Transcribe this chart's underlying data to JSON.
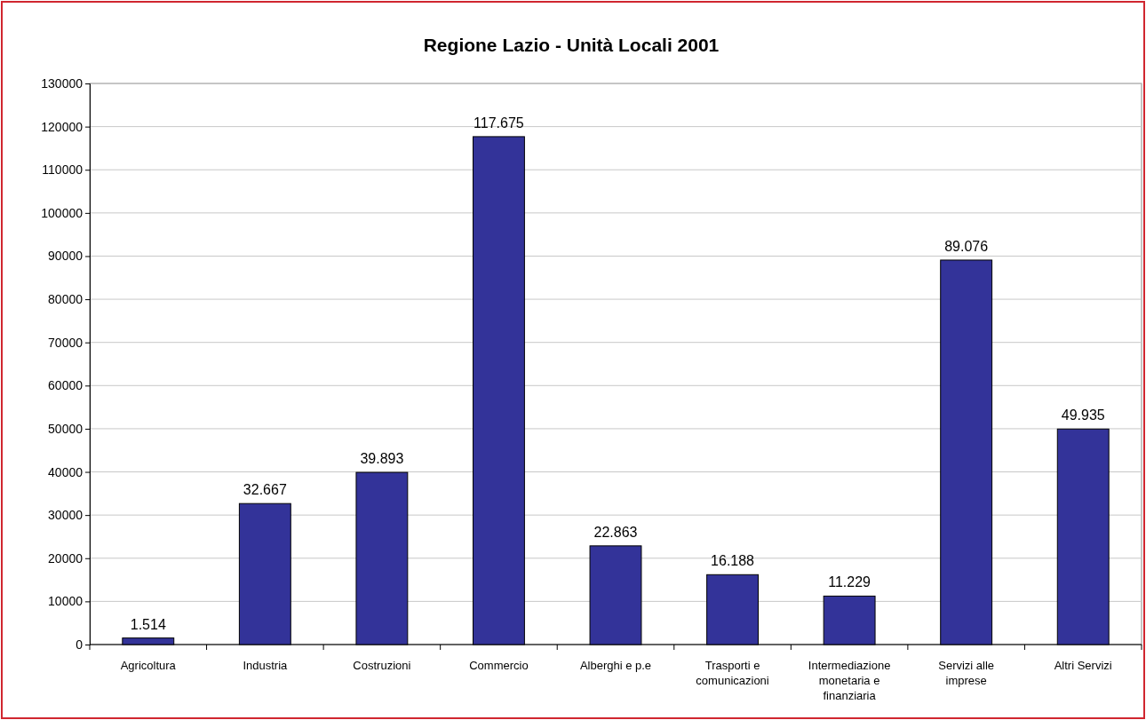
{
  "chart_data": {
    "type": "bar",
    "title": "Regione Lazio - Unità Locali 2001",
    "categories": [
      "Agricoltura",
      "Industria",
      "Costruzioni",
      "Commercio",
      "Alberghi e p.e",
      "Trasporti e comunicazioni",
      "Intermediazione monetaria e finanziaria",
      "Servizi alle imprese",
      "Altri Servizi"
    ],
    "values": [
      1514,
      32667,
      39893,
      117675,
      22863,
      16188,
      11229,
      89076,
      49935
    ],
    "value_labels": [
      "1.514",
      "32.667",
      "39.893",
      "117.675",
      "22.863",
      "16.188",
      "11.229",
      "89.076",
      "49.935"
    ],
    "color": "#333399",
    "ylim": [
      0,
      130000
    ],
    "yticks": [
      0,
      10000,
      20000,
      30000,
      40000,
      50000,
      60000,
      70000,
      80000,
      90000,
      100000,
      110000,
      120000,
      130000
    ],
    "grid": "y"
  }
}
